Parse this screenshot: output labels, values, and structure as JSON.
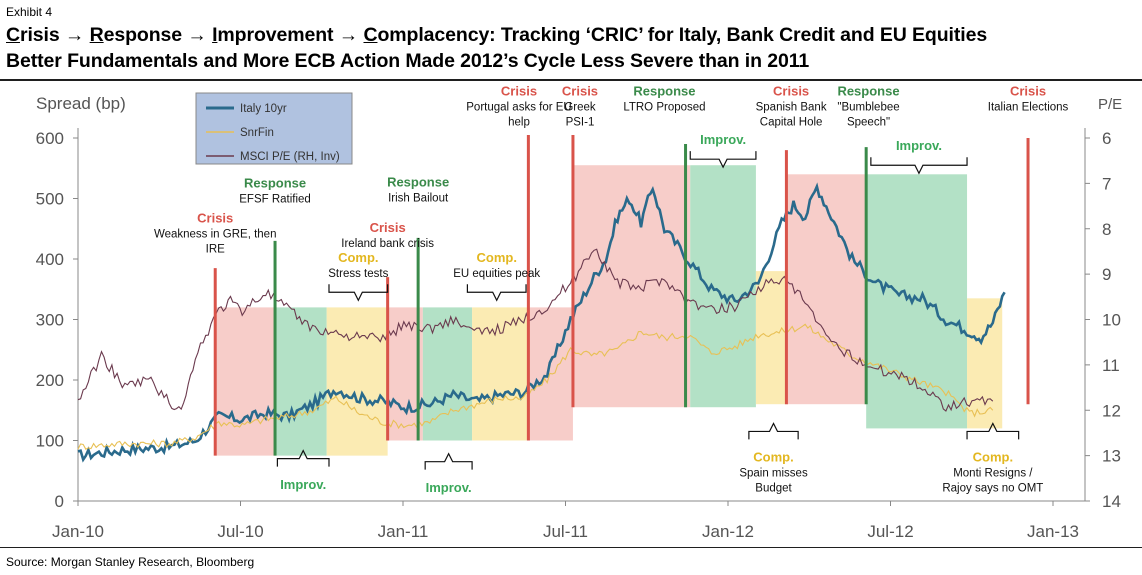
{
  "exhibit": "Exhibit 4",
  "title": {
    "line1_parts": [
      {
        "u": "C",
        "t": "risis → "
      },
      {
        "u": "R",
        "t": "esponse → "
      },
      {
        "u": "I",
        "t": "mprovement → "
      },
      {
        "u": "C",
        "t": "omplacency: Tracking ‘CRIC’ for Italy, Bank Credit and EU Equities"
      }
    ],
    "line2": "Better Fundamentals and More ECB Action Made 2012’s Cycle Less Severe than in 2011"
  },
  "source": "Source: Morgan Stanley Research, Bloomberg",
  "colors": {
    "italy": "#2a6a8c",
    "snrfin": "#e8c055",
    "msci": "#6b3a4e",
    "crisis": "#d9534a",
    "response": "#3a8a4a",
    "improv": "#3aa85a",
    "comp": "#e3b720",
    "crisis_fill": "#f6c4c0",
    "response_fill": "#a6dcbc",
    "comp_fill": "#fae8a6"
  },
  "chart_data": {
    "type": "line",
    "ylabel_left": "Spread (bp)",
    "ylabel_right": "P/E",
    "ylim_left": [
      0,
      600
    ],
    "ylim_right_inverted": [
      6,
      14
    ],
    "yticks_left": [
      "0",
      "100",
      "200",
      "300",
      "400",
      "500",
      "600"
    ],
    "yticks_right": [
      "6",
      "7",
      "8",
      "9",
      "10",
      "11",
      "12",
      "13",
      "14"
    ],
    "xticks": [
      "Jan-10",
      "Jul-10",
      "Jan-11",
      "Jul-11",
      "Jan-12",
      "Jul-12",
      "Jan-13"
    ],
    "legend": [
      "Italy 10yr",
      "SnrFin",
      "MSCI P/E (RH, Inv)"
    ],
    "series": [
      {
        "name": "Italy 10yr",
        "key": "italy",
        "points": [
          [
            0,
            75
          ],
          [
            2,
            85
          ],
          [
            4,
            90
          ],
          [
            5,
            100
          ],
          [
            6,
            140
          ],
          [
            7,
            135
          ],
          [
            8,
            145
          ],
          [
            9,
            140
          ],
          [
            10,
            160
          ],
          [
            11,
            185
          ],
          [
            12,
            170
          ],
          [
            13,
            165
          ],
          [
            14,
            155
          ],
          [
            15,
            160
          ],
          [
            16,
            175
          ],
          [
            17,
            165
          ],
          [
            18,
            175
          ],
          [
            19,
            180
          ],
          [
            20,
            210
          ],
          [
            21,
            300
          ],
          [
            22,
            370
          ],
          [
            22.5,
            400
          ],
          [
            23,
            470
          ],
          [
            23.5,
            500
          ],
          [
            24,
            460
          ],
          [
            24.5,
            520
          ],
          [
            25,
            450
          ],
          [
            26,
            400
          ],
          [
            27,
            350
          ],
          [
            28,
            330
          ],
          [
            29,
            360
          ],
          [
            30,
            460
          ],
          [
            30.5,
            490
          ],
          [
            31,
            470
          ],
          [
            31.5,
            520
          ],
          [
            32,
            480
          ],
          [
            33,
            400
          ],
          [
            34,
            360
          ],
          [
            35,
            340
          ],
          [
            36,
            335
          ],
          [
            37,
            300
          ],
          [
            38,
            280
          ],
          [
            38.5,
            270
          ],
          [
            39,
            295
          ],
          [
            39.5,
            345
          ]
        ]
      },
      {
        "name": "SnrFin",
        "key": "snrfin",
        "points": [
          [
            0,
            90
          ],
          [
            2,
            95
          ],
          [
            4,
            95
          ],
          [
            5,
            105
          ],
          [
            6,
            130
          ],
          [
            7,
            125
          ],
          [
            8,
            135
          ],
          [
            9,
            140
          ],
          [
            10,
            150
          ],
          [
            11,
            170
          ],
          [
            12,
            145
          ],
          [
            13,
            130
          ],
          [
            14,
            125
          ],
          [
            15,
            130
          ],
          [
            16,
            150
          ],
          [
            17,
            160
          ],
          [
            18,
            170
          ],
          [
            19,
            170
          ],
          [
            20,
            200
          ],
          [
            21,
            250
          ],
          [
            22,
            240
          ],
          [
            23,
            250
          ],
          [
            24,
            280
          ],
          [
            25,
            270
          ],
          [
            26,
            275
          ],
          [
            27,
            245
          ],
          [
            28,
            255
          ],
          [
            29,
            275
          ],
          [
            30,
            280
          ],
          [
            31,
            290
          ],
          [
            32,
            265
          ],
          [
            33,
            240
          ],
          [
            34,
            225
          ],
          [
            35,
            210
          ],
          [
            36,
            195
          ],
          [
            37,
            180
          ],
          [
            38,
            145
          ],
          [
            39,
            150
          ]
        ]
      },
      {
        "name": "MSCI P/E (RH, Inv)",
        "key": "msci",
        "points": [
          [
            0,
            11.8
          ],
          [
            1,
            10.8
          ],
          [
            2,
            11.5
          ],
          [
            3,
            11.3
          ],
          [
            4,
            11.9
          ],
          [
            4.5,
            11.9
          ],
          [
            5,
            10.8
          ],
          [
            6,
            9.8
          ],
          [
            6.5,
            9.6
          ],
          [
            7,
            9.8
          ],
          [
            8,
            9.4
          ],
          [
            9,
            9.8
          ],
          [
            10,
            10.2
          ],
          [
            11,
            10.3
          ],
          [
            12,
            10.4
          ],
          [
            13,
            10.4
          ],
          [
            14,
            10.1
          ],
          [
            15,
            10.2
          ],
          [
            16,
            10.0
          ],
          [
            17,
            10.3
          ],
          [
            18,
            10.2
          ],
          [
            19,
            10.0
          ],
          [
            20,
            9.7
          ],
          [
            21,
            9.2
          ],
          [
            22,
            8.4
          ],
          [
            23,
            9.2
          ],
          [
            24,
            9.3
          ],
          [
            25,
            9.1
          ],
          [
            26,
            9.6
          ],
          [
            27,
            9.8
          ],
          [
            28,
            9.7
          ],
          [
            29,
            9.3
          ],
          [
            30,
            9.1
          ],
          [
            31,
            9.6
          ],
          [
            32,
            10.5
          ],
          [
            33,
            10.8
          ],
          [
            34,
            11.1
          ],
          [
            35,
            11.2
          ],
          [
            36,
            11.5
          ],
          [
            37,
            11.9
          ],
          [
            38,
            11.8
          ],
          [
            39,
            11.8
          ]
        ]
      }
    ],
    "bands": [
      {
        "kind": "crisis",
        "x0": 5.85,
        "x1": 8.4,
        "top": 320,
        "bottom": 75
      },
      {
        "kind": "response",
        "x0": 8.4,
        "x1": 10.6,
        "top": 320,
        "bottom": 75
      },
      {
        "kind": "comp",
        "x0": 10.6,
        "x1": 13.2,
        "top": 320,
        "bottom": 75
      },
      {
        "kind": "crisis",
        "x0": 13.2,
        "x1": 14.7,
        "top": 320,
        "bottom": 100
      },
      {
        "kind": "response",
        "x0": 14.7,
        "x1": 16.8,
        "top": 320,
        "bottom": 100
      },
      {
        "kind": "comp",
        "x0": 16.8,
        "x1": 19.2,
        "top": 320,
        "bottom": 100
      },
      {
        "kind": "crisis",
        "x0": 19.2,
        "x1": 21.1,
        "top": 320,
        "bottom": 100
      },
      {
        "kind": "crisis",
        "x0": 21.1,
        "x1": 26.1,
        "top": 555,
        "bottom": 155
      },
      {
        "kind": "response",
        "x0": 26.1,
        "x1": 28.9,
        "top": 555,
        "bottom": 155
      },
      {
        "kind": "comp",
        "x0": 28.9,
        "x1": 30.2,
        "top": 380,
        "bottom": 160
      },
      {
        "kind": "crisis",
        "x0": 30.2,
        "x1": 33.6,
        "top": 540,
        "bottom": 160
      },
      {
        "kind": "response",
        "x0": 33.6,
        "x1": 37.9,
        "top": 540,
        "bottom": 120
      },
      {
        "kind": "comp",
        "x0": 37.9,
        "x1": 39.4,
        "top": 335,
        "bottom": 120
      }
    ],
    "events": [
      {
        "kind": "crisis",
        "x": 5.85,
        "top": 385,
        "bottom": 75,
        "label": "Crisis",
        "desc": [
          "Weakness in GRE, then",
          "IRE"
        ],
        "lx": 5.85,
        "ly": 460,
        "text_anchor": "middle"
      },
      {
        "kind": "response",
        "x": 8.4,
        "top": 430,
        "bottom": 75,
        "label": "Response",
        "desc": [
          "EFSF Ratified"
        ],
        "lx": 8.4,
        "ly": 518,
        "text_anchor": "middle"
      },
      {
        "kind": "crisis",
        "x": 13.2,
        "top": 370,
        "bottom": 100,
        "label": "Crisis",
        "desc": [
          "Ireland bank crisis"
        ],
        "lx": 13.2,
        "ly": 445,
        "text_anchor": "middle"
      },
      {
        "kind": "response",
        "x": 14.5,
        "top": 435,
        "bottom": 100,
        "label": "Response",
        "desc": [
          "Irish Bailout"
        ],
        "lx": 14.5,
        "ly": 520,
        "text_anchor": "middle"
      },
      {
        "kind": "crisis",
        "x": 19.2,
        "top": 605,
        "bottom": 100,
        "label": "Crisis",
        "desc": [
          "Portugal asks for EU",
          "help"
        ],
        "lx": 18.8,
        "ly": 670,
        "text_anchor": "middle"
      },
      {
        "kind": "crisis",
        "x": 21.1,
        "top": 605,
        "bottom": 155,
        "label": "Crisis",
        "desc": [
          "Greek",
          "PSI-1"
        ],
        "lx": 21.4,
        "ly": 670,
        "text_anchor": "middle"
      },
      {
        "kind": "response",
        "x": 25.9,
        "top": 590,
        "bottom": 155,
        "label": "Response",
        "desc": [
          "LTRO Proposed"
        ],
        "lx": 25.0,
        "ly": 670,
        "text_anchor": "middle"
      },
      {
        "kind": "crisis",
        "x": 30.2,
        "top": 580,
        "bottom": 160,
        "label": "Crisis",
        "desc": [
          "Spanish Bank",
          "Capital Hole"
        ],
        "lx": 30.4,
        "ly": 670,
        "text_anchor": "middle"
      },
      {
        "kind": "response",
        "x": 33.6,
        "top": 585,
        "bottom": 160,
        "label": "Response",
        "desc": [
          "\"Bumblebee",
          "Speech\""
        ],
        "lx": 33.7,
        "ly": 670,
        "text_anchor": "middle"
      },
      {
        "kind": "crisis",
        "x": 40.5,
        "top": 600,
        "bottom": 160,
        "label": "Crisis",
        "desc": [
          "Italian Elections"
        ],
        "lx": 40.5,
        "ly": 670,
        "text_anchor": "middle"
      }
    ],
    "phase_labels": [
      {
        "kind": "improv",
        "text": "Improv.",
        "x0": 8.5,
        "x1": 10.7,
        "brace_y": 70,
        "text_y": 20,
        "dir": "down"
      },
      {
        "kind": "comp",
        "text": "Comp.",
        "x0": 10.7,
        "x1": 13.2,
        "brace_y": 345,
        "text_y": 395,
        "dir": "up",
        "sub": "Stress tests"
      },
      {
        "kind": "improv",
        "text": "Improv.",
        "x0": 14.8,
        "x1": 16.8,
        "brace_y": 65,
        "text_y": 15,
        "dir": "down"
      },
      {
        "kind": "comp",
        "text": "Comp.",
        "x0": 16.6,
        "x1": 19.1,
        "brace_y": 345,
        "text_y": 395,
        "dir": "up",
        "sub": "EU equities peak"
      },
      {
        "kind": "improv",
        "text": "Improv.",
        "x0": 26.1,
        "x1": 28.9,
        "brace_y": 565,
        "text_y": 590,
        "dir": "up"
      },
      {
        "kind": "comp",
        "text": "Comp.",
        "x0": 28.6,
        "x1": 30.7,
        "brace_y": 115,
        "text_y": 65,
        "dir": "down",
        "sub_below": [
          "Spain misses",
          "Budget"
        ]
      },
      {
        "kind": "improv",
        "text": "Improv.",
        "x0": 33.8,
        "x1": 37.9,
        "brace_y": 555,
        "text_y": 580,
        "dir": "up"
      },
      {
        "kind": "comp",
        "text": "Comp.",
        "x0": 37.9,
        "x1": 40.1,
        "brace_y": 115,
        "text_y": 65,
        "dir": "down",
        "sub_below": [
          "Monti Resigns /",
          "Rajoy says no OMT"
        ]
      }
    ]
  }
}
